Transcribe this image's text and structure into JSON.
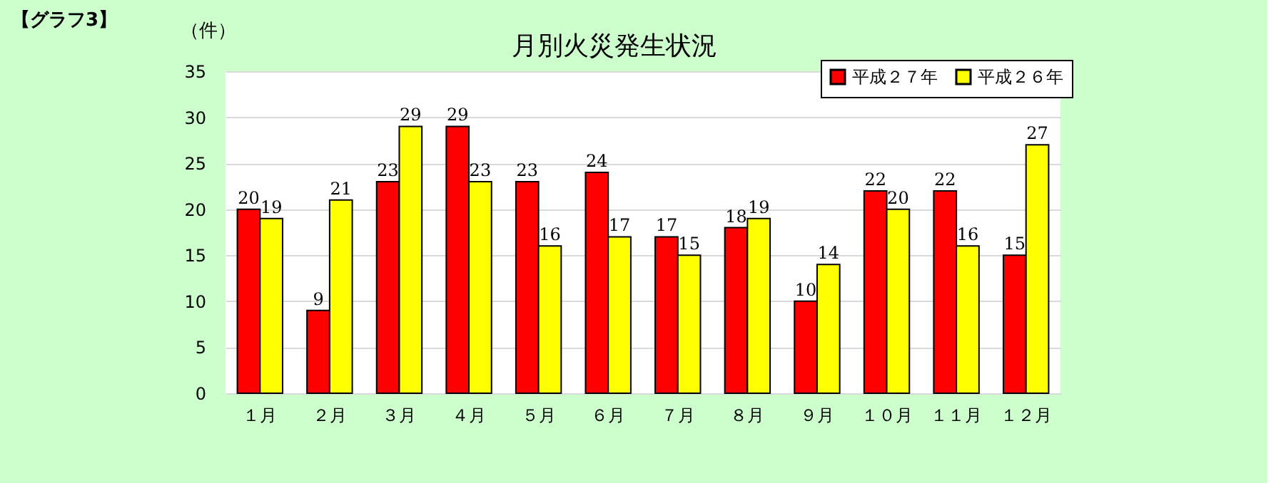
{
  "chart_data": {
    "type": "bar",
    "title": "月別火災発生状況",
    "ylabel": "（件）",
    "annotations": [
      "【グラフ3】"
    ],
    "categories": [
      "１月",
      "２月",
      "３月",
      "４月",
      "５月",
      "６月",
      "７月",
      "８月",
      "９月",
      "１０月",
      "１１月",
      "１２月"
    ],
    "series": [
      {
        "name": "平成２７年",
        "color": "#ff0000",
        "values": [
          20,
          9,
          23,
          29,
          23,
          24,
          17,
          18,
          10,
          22,
          22,
          15
        ]
      },
      {
        "name": "平成２６年",
        "color": "#ffff00",
        "values": [
          19,
          21,
          29,
          23,
          16,
          17,
          15,
          19,
          14,
          20,
          16,
          27
        ]
      }
    ],
    "ylim": [
      0,
      35
    ],
    "yticks": [
      0,
      5,
      10,
      15,
      20,
      25,
      30,
      35
    ],
    "grid": "y",
    "legend": "top right",
    "data_labels": true
  }
}
